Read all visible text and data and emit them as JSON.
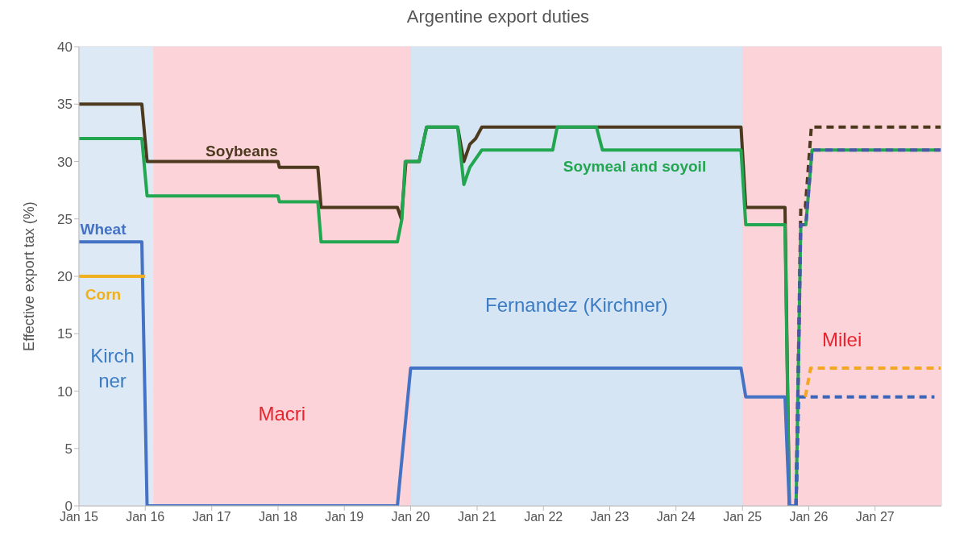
{
  "chart_data": {
    "type": "line",
    "title": "Argentine export duties",
    "ylabel": "Effective export tax (%)",
    "xlim": [
      "2015-01-01",
      "2028-01-01"
    ],
    "ylim": [
      0,
      40
    ],
    "yticks": [
      0,
      5,
      10,
      15,
      20,
      25,
      30,
      35,
      40
    ],
    "xticks": [
      {
        "value": "2015-01-01",
        "label": "Jan 15"
      },
      {
        "value": "2016-01-01",
        "label": "Jan 16"
      },
      {
        "value": "2017-01-01",
        "label": "Jan 17"
      },
      {
        "value": "2018-01-01",
        "label": "Jan 18"
      },
      {
        "value": "2019-01-01",
        "label": "Jan 19"
      },
      {
        "value": "2020-01-01",
        "label": "Jan 20"
      },
      {
        "value": "2021-01-01",
        "label": "Jan 21"
      },
      {
        "value": "2022-01-01",
        "label": "Jan 22"
      },
      {
        "value": "2023-01-01",
        "label": "Jan 23"
      },
      {
        "value": "2024-01-01",
        "label": "Jan 24"
      },
      {
        "value": "2025-01-01",
        "label": "Jan 25"
      },
      {
        "value": "2026-01-01",
        "label": "Jan 26"
      },
      {
        "value": "2027-01-01",
        "label": "Jan 27"
      }
    ],
    "grid": true,
    "marker": "none",
    "bands": [
      {
        "axis": "x",
        "from": "2015-01-01",
        "to": "2016-02-14",
        "label": "Kirchner",
        "color": "#dde9f5"
      },
      {
        "axis": "x",
        "from": "2016-02-14",
        "to": "2020-01-01",
        "label": "Macri",
        "color": "#fbd3d9"
      },
      {
        "axis": "x",
        "from": "2020-01-01",
        "to": "2025-01-01",
        "label": "Fernandez (Kirchner)",
        "color": "#d6e5f4"
      },
      {
        "axis": "x",
        "from": "2025-01-01",
        "to": "2028-01-01",
        "label": "Milei",
        "color": "#fbd3d9"
      }
    ],
    "series": [
      {
        "name": "Soybeans",
        "color": "#4d3a1e",
        "line_style": "solid",
        "x": [
          "2015-01-01",
          "2015-12-13",
          "2016-01-11",
          "2018-01-01",
          "2018-01-08",
          "2018-08-08",
          "2018-08-26",
          "2019-10-20",
          "2019-11-11",
          "2019-12-06",
          "2020-02-17",
          "2020-03-29",
          "2020-09-16",
          "2020-10-20",
          "2020-11-22",
          "2020-12-24",
          "2021-01-27",
          "2024-12-24",
          "2025-01-19",
          "2025-08-23",
          "2025-09-16",
          "2025-10-23"
        ],
        "values": [
          35,
          35,
          30,
          30,
          29.5,
          29.5,
          26,
          26,
          25,
          30,
          30,
          33,
          33,
          30,
          31.5,
          32,
          33,
          33,
          26,
          26,
          0,
          0
        ]
      },
      {
        "color": "#4d3a1e",
        "line_style": "dashed",
        "x": [
          "2025-10-23",
          "2025-11-18",
          "2025-12-13",
          "2026-01-15",
          "2027-12-28"
        ],
        "values": [
          0,
          26,
          26,
          33,
          33
        ]
      },
      {
        "name": "Soymeal and soyoil",
        "color": "#22a650",
        "line_style": "solid",
        "x": [
          "2015-01-01",
          "2015-12-13",
          "2016-01-11",
          "2018-01-01",
          "2018-01-08",
          "2018-08-08",
          "2018-08-26",
          "2019-10-20",
          "2019-11-14",
          "2019-12-02",
          "2020-02-17",
          "2020-03-29",
          "2020-09-16",
          "2020-10-20",
          "2020-11-22",
          "2021-01-27",
          "2022-02-21",
          "2022-03-18",
          "2022-10-20",
          "2022-11-22",
          "2024-12-24",
          "2025-01-19",
          "2025-08-23",
          "2025-09-16",
          "2025-10-23",
          "2025-11-18",
          "2025-12-16",
          "2026-01-19",
          "2027-12-28"
        ],
        "values": [
          32,
          32,
          27,
          27,
          26.5,
          26.5,
          23,
          23,
          25,
          30,
          30,
          33,
          33,
          28,
          29.5,
          31,
          31,
          33,
          33,
          31,
          31,
          24.5,
          24.5,
          0,
          0,
          24.5,
          24.5,
          31,
          31
        ]
      },
      {
        "color": "#4a56a8",
        "line_style": "dashed",
        "x": [
          "2025-10-23",
          "2025-11-18",
          "2025-12-16",
          "2026-01-19",
          "2027-12-28"
        ],
        "values": [
          0,
          24.5,
          24.5,
          31,
          31
        ]
      },
      {
        "name": "Wheat",
        "color": "#4472c4",
        "line_style": "solid",
        "x": [
          "2015-01-01",
          "2015-12-13",
          "2016-01-11",
          "2019-10-20",
          "2020-01-01",
          "2024-12-24",
          "2025-01-19",
          "2025-08-23",
          "2025-09-16",
          "2025-10-23"
        ],
        "values": [
          23,
          23,
          0,
          0,
          12,
          12,
          9.5,
          9.5,
          0,
          0
        ]
      },
      {
        "color": "#3a64b8",
        "line_style": "dashed",
        "x": [
          "2025-10-23",
          "2025-11-07",
          "2027-11-24"
        ],
        "values": [
          0,
          9.5,
          9.5
        ]
      },
      {
        "name": "Corn",
        "color": "#f0b020",
        "line_style": "solid",
        "x": [
          "2015-01-01",
          "2016-01-01"
        ],
        "values": [
          20,
          20
        ]
      },
      {
        "color": "#f5a623",
        "line_style": "dashed",
        "x": [
          "2025-12-13",
          "2026-01-11",
          "2027-12-28"
        ],
        "values": [
          9.5,
          12,
          12
        ]
      }
    ]
  }
}
